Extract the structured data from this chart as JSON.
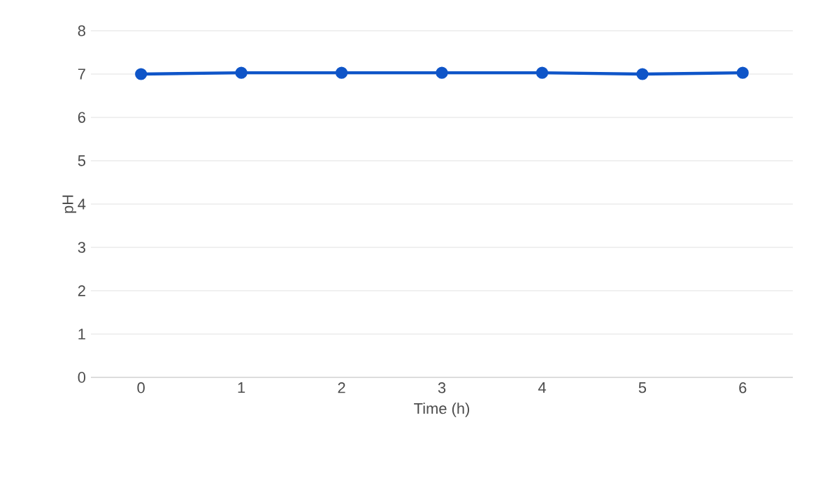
{
  "chart_data": {
    "type": "line",
    "xlabel": "Time (h)",
    "ylabel": "pH",
    "categories": [
      "0",
      "1",
      "2",
      "3",
      "4",
      "5",
      "6"
    ],
    "series": [
      {
        "color": "#0f55c8",
        "values": [
          7.0,
          7.03,
          7.03,
          7.03,
          7.03,
          7.0,
          7.03
        ]
      }
    ],
    "ylim": [
      0,
      8
    ],
    "yticks": [
      0,
      1,
      2,
      3,
      4,
      5,
      6,
      7,
      8
    ],
    "grid": "y",
    "marker": "circle",
    "line_style": "solid"
  }
}
